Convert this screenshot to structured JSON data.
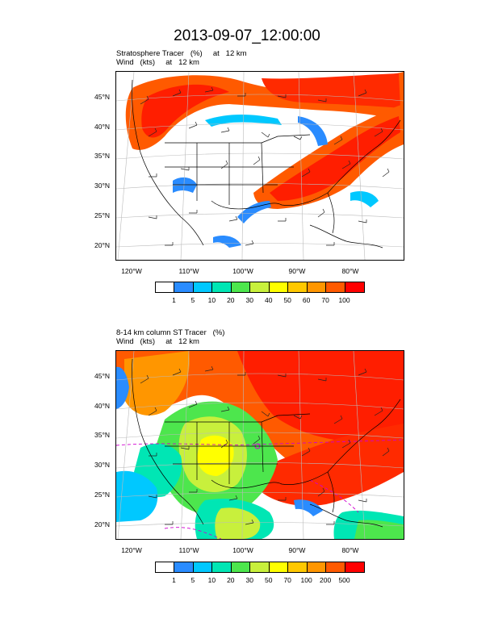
{
  "title": "2013-09-07_12:00:00",
  "panels": [
    {
      "subtitle_line1": "Stratosphere Tracer   (%)     at   12 km",
      "subtitle_line2": "Wind   (kts)     at   12 km",
      "lat_labels": [
        "45°N",
        "40°N",
        "35°N",
        "30°N",
        "25°N",
        "20°N"
      ],
      "lon_labels": [
        "120°W",
        "110°W",
        "100°W",
        "90°W",
        "80°W"
      ],
      "colorbar_labels": [
        "1",
        "5",
        "10",
        "20",
        "30",
        "40",
        "50",
        "60",
        "70",
        "100"
      ],
      "colorbar_colors": [
        "#ffffff",
        "#2a8cff",
        "#00c8ff",
        "#00e6b4",
        "#4de64d",
        "#c8f03c",
        "#ffff00",
        "#ffc800",
        "#ff9600",
        "#ff5a00",
        "#ff0000"
      ]
    },
    {
      "subtitle_line1": "8-14 km column ST Tracer   (%)",
      "subtitle_line2": "Wind   (kts)     at   12 km",
      "lat_labels": [
        "45°N",
        "40°N",
        "35°N",
        "30°N",
        "25°N",
        "20°N"
      ],
      "lon_labels": [
        "120°W",
        "110°W",
        "100°W",
        "90°W",
        "80°W"
      ],
      "colorbar_labels": [
        "1",
        "5",
        "10",
        "20",
        "30",
        "50",
        "70",
        "100",
        "200",
        "500"
      ],
      "colorbar_colors": [
        "#ffffff",
        "#2a8cff",
        "#00c8ff",
        "#00e6b4",
        "#4de64d",
        "#c8f03c",
        "#ffff00",
        "#ffc800",
        "#ff9600",
        "#ff5a00",
        "#ff0000"
      ]
    }
  ]
}
